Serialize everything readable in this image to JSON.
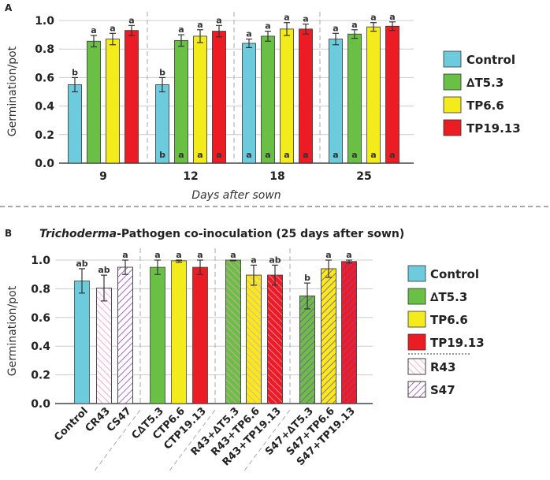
{
  "chart_data": [
    {
      "type": "bar",
      "panel_label": "A",
      "title": "",
      "xlabel": "Days after sown",
      "ylabel": "Germination/pot",
      "ylim": [
        0,
        1.0
      ],
      "yticks": [
        "0.0",
        "0.2",
        "0.4",
        "0.6",
        "0.8",
        "1.0"
      ],
      "grid": true,
      "legend_position": "right",
      "categories": [
        "9",
        "12",
        "18",
        "25"
      ],
      "series": [
        {
          "name": "Control",
          "color": "#6ccbdc",
          "values": [
            0.55,
            0.55,
            0.84,
            0.87
          ],
          "errors": [
            0.05,
            0.05,
            0.03,
            0.04
          ],
          "letters_top": [
            "b",
            "b",
            "a",
            "a"
          ],
          "letters_bottom": [
            "",
            "b",
            "a",
            "a"
          ]
        },
        {
          "name": "∆T5.3",
          "color": "#6abf45",
          "values": [
            0.855,
            0.86,
            0.89,
            0.905
          ],
          "errors": [
            0.04,
            0.04,
            0.035,
            0.03
          ],
          "letters_top": [
            "a",
            "a",
            "a",
            "a"
          ],
          "letters_bottom": [
            "",
            "a",
            "a",
            "a"
          ]
        },
        {
          "name": "TP6.6",
          "color": "#f3eb1b",
          "values": [
            0.87,
            0.89,
            0.94,
            0.955
          ],
          "errors": [
            0.04,
            0.045,
            0.045,
            0.03
          ],
          "letters_top": [
            "a",
            "a",
            "a",
            "a"
          ],
          "letters_bottom": [
            "",
            "a",
            "a",
            "a"
          ]
        },
        {
          "name": "TP19.13",
          "color": "#ec1c24",
          "values": [
            0.93,
            0.925,
            0.94,
            0.96
          ],
          "errors": [
            0.035,
            0.04,
            0.035,
            0.03
          ],
          "letters_top": [
            "a",
            "a",
            "a",
            "a"
          ],
          "letters_bottom": [
            "",
            "a",
            "a",
            "a"
          ]
        }
      ]
    },
    {
      "type": "bar",
      "panel_label": "B",
      "title_italic": "Trichoderma",
      "title_rest": "-Pathogen co-inoculation (25 days after sown)",
      "xlabel": "",
      "ylabel": "Germination/pot",
      "ylim": [
        0,
        1.0
      ],
      "yticks": [
        "0.0",
        "0.2",
        "0.4",
        "0.6",
        "0.8",
        "1.0"
      ],
      "grid": true,
      "legend_position": "right",
      "categories": [
        "Control",
        "CR43",
        "CS47",
        "C∆T5.3",
        "CTP6.6",
        "CTP19.13",
        "R43+∆T5.3",
        "R43+TP6.6",
        "R43+TP19.13",
        "S47+∆T5.3",
        "S47+TP6.6",
        "S47+TP19.13"
      ],
      "values": [
        0.855,
        0.805,
        0.95,
        0.95,
        0.995,
        0.95,
        1.0,
        0.895,
        0.895,
        0.75,
        0.94,
        0.99
      ],
      "errors": [
        0.085,
        0.09,
        0.05,
        0.05,
        0.01,
        0.05,
        0.005,
        0.07,
        0.07,
        0.09,
        0.06,
        0.01
      ],
      "letters": [
        "ab",
        "ab",
        "a",
        "a",
        "a",
        "a",
        "a",
        "a",
        "ab",
        "b",
        "a",
        "a"
      ],
      "fills": [
        "#6ccbdc",
        "#ffffff",
        "#ffffff",
        "#6abf45",
        "#f3eb1b",
        "#ec1c24",
        "#6abf45",
        "#f3eb1b",
        "#ec1c24",
        "#6abf45",
        "#f3eb1b",
        "#ec1c24"
      ],
      "hatches": [
        "",
        "R43",
        "S47",
        "",
        "",
        "",
        "R43",
        "R43",
        "R43",
        "S47",
        "S47",
        "S47"
      ],
      "legend": [
        {
          "name": "Control",
          "color": "#6ccbdc",
          "hatch": ""
        },
        {
          "name": "∆T5.3",
          "color": "#6abf45",
          "hatch": ""
        },
        {
          "name": "TP6.6",
          "color": "#f3eb1b",
          "hatch": ""
        },
        {
          "name": "TP19.13",
          "color": "#ec1c24",
          "hatch": ""
        },
        {
          "name": "R43",
          "color": "#ffffff",
          "hatch": "R43"
        },
        {
          "name": "S47",
          "color": "#ffffff",
          "hatch": "S47"
        }
      ]
    }
  ],
  "hatch_colors": {
    "R43": "#f29ac0",
    "S47": "#8e44b8"
  }
}
